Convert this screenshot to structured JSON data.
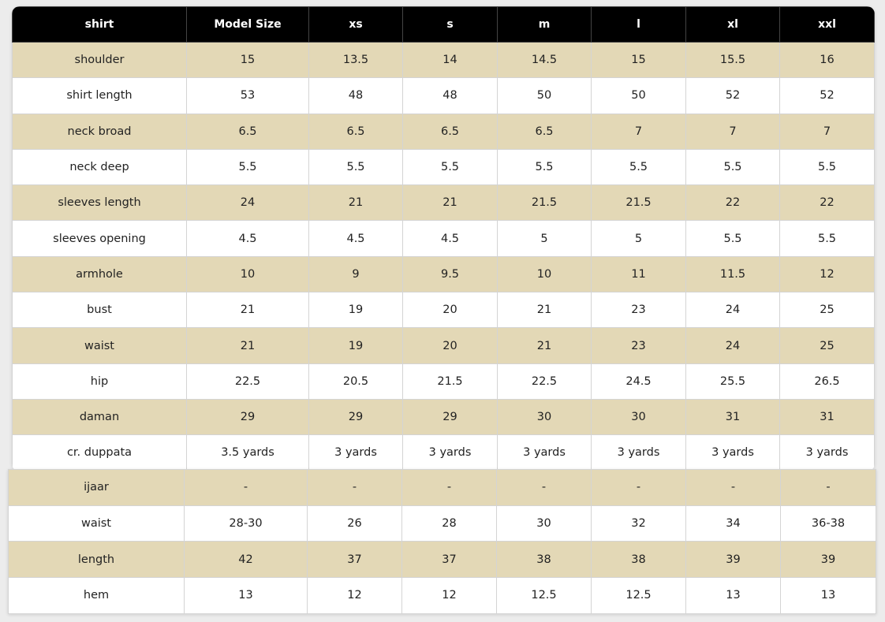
{
  "headers": [
    "shirt",
    "Model Size",
    "xs",
    "s",
    "m",
    "l",
    "xl",
    "xxl"
  ],
  "shirt_rows": [
    [
      "shoulder",
      "15",
      "13.5",
      "14",
      "14.5",
      "15",
      "15.5",
      "16"
    ],
    [
      "shirt length",
      "53",
      "48",
      "48",
      "50",
      "50",
      "52",
      "52"
    ],
    [
      "neck broad",
      "6.5",
      "6.5",
      "6.5",
      "6.5",
      "7",
      "7",
      "7"
    ],
    [
      "neck deep",
      "5.5",
      "5.5",
      "5.5",
      "5.5",
      "5.5",
      "5.5",
      "5.5"
    ],
    [
      "sleeves length",
      "24",
      "21",
      "21",
      "21.5",
      "21.5",
      "22",
      "22"
    ],
    [
      "sleeves opening",
      "4.5",
      "4.5",
      "4.5",
      "5",
      "5",
      "5.5",
      "5.5"
    ],
    [
      "armhole",
      "10",
      "9",
      "9.5",
      "10",
      "11",
      "11.5",
      "12"
    ],
    [
      "bust",
      "21",
      "19",
      "20",
      "21",
      "23",
      "24",
      "25"
    ],
    [
      "waist",
      "21",
      "19",
      "20",
      "21",
      "23",
      "24",
      "25"
    ],
    [
      "hip",
      "22.5",
      "20.5",
      "21.5",
      "22.5",
      "24.5",
      "25.5",
      "26.5"
    ],
    [
      "daman",
      "29",
      "29",
      "29",
      "30",
      "30",
      "31",
      "31"
    ],
    [
      "cr. duppata",
      "3.5 yards",
      "3 yards",
      "3 yards",
      "3 yards",
      "3 yards",
      "3 yards",
      "3 yards"
    ]
  ],
  "ijaar_rows": [
    [
      "ijaar",
      "-",
      "-",
      "-",
      "-",
      "-",
      "-",
      "-"
    ],
    [
      "waist",
      "28-30",
      "26",
      "28",
      "30",
      "32",
      "34",
      "36-38"
    ],
    [
      "length",
      "42",
      "37",
      "37",
      "38",
      "38",
      "39",
      "39"
    ],
    [
      "hem",
      "13",
      "12",
      "12",
      "12.5",
      "12.5",
      "13",
      "13"
    ]
  ],
  "colors": {
    "header_bg": "#000000",
    "stripe": "#e3d8b6",
    "background": "#ececec"
  }
}
